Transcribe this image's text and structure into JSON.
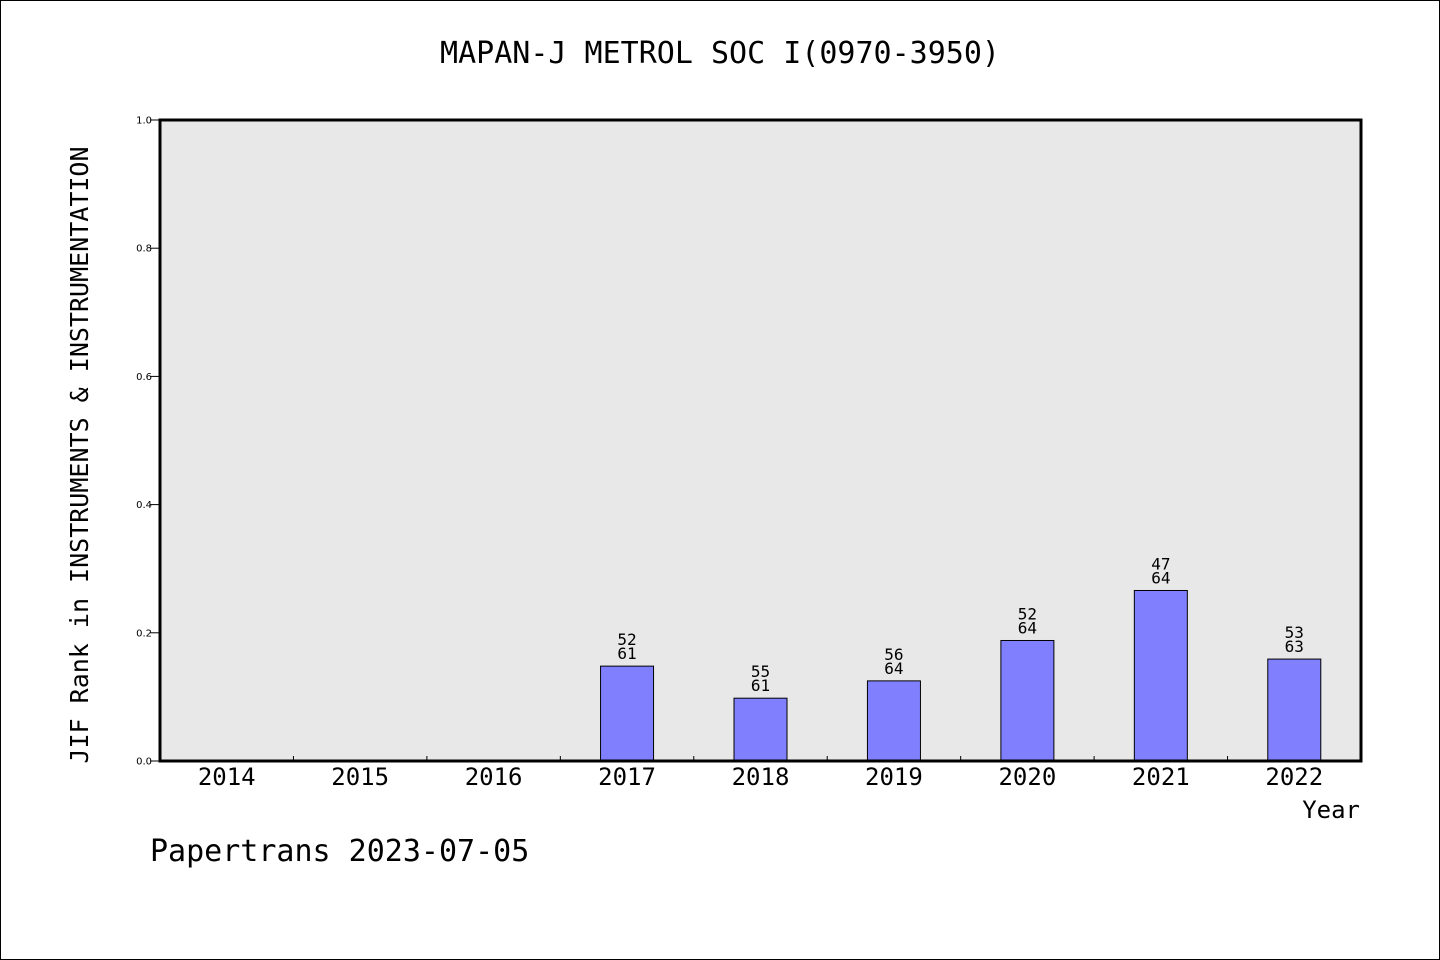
{
  "chart_data": {
    "type": "bar",
    "title": "MAPAN-J METROL SOC I(0970-3950)",
    "xlabel": "Year",
    "ylabel": "JIF Rank in INSTRUMENTS & INSTRUMENTATION",
    "ylim": [
      0,
      1.0
    ],
    "yticks": [
      "0.0",
      "0.2",
      "0.4",
      "0.6",
      "0.8",
      "1.0"
    ],
    "categories": [
      "2014",
      "2015",
      "2016",
      "2017",
      "2018",
      "2019",
      "2020",
      "2021",
      "2022"
    ],
    "values": [
      null,
      null,
      null,
      0.148,
      0.098,
      0.125,
      0.188,
      0.266,
      0.159
    ],
    "rank": [
      "",
      "",
      "",
      "52",
      "55",
      "56",
      "52",
      "47",
      "53"
    ],
    "total": [
      "",
      "",
      "",
      "61",
      "61",
      "64",
      "64",
      "64",
      "63"
    ],
    "bar_color": "#8080ff",
    "plot_background": "#e8e8e8",
    "grid": false
  },
  "footer": "Papertrans 2023-07-05"
}
